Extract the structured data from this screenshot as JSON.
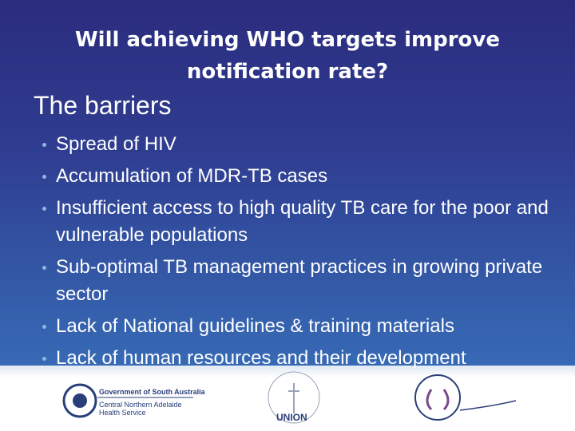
{
  "slide": {
    "title": "Will achieving WHO targets improve notification rate?",
    "subtitle": "The barriers",
    "bullets": [
      "Spread of HIV",
      "Accumulation of MDR-TB cases",
      "Insufficient access to high quality TB care for the poor and vulnerable populations",
      "Sub-optimal TB management practices in growing private sector",
      "Lack of National guidelines & training materials",
      "Lack of human resources and their development"
    ],
    "footer": {
      "logo1_name": "Government of South Australia",
      "logo1_sub": "Central Northern Adelaide Health Service",
      "logo2_name": "UNION"
    }
  }
}
